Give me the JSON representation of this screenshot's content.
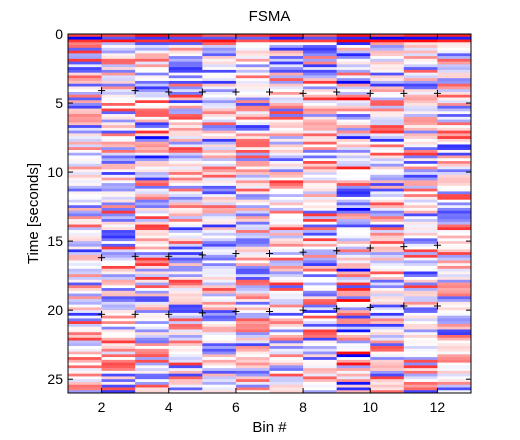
{
  "chart_data": {
    "type": "heatmap",
    "title": "FSMA",
    "xlabel": "Bin #",
    "ylabel": "Time [seconds]",
    "xlim": [
      1,
      13
    ],
    "ylim": [
      0,
      26
    ],
    "y_reversed": true,
    "grid": false,
    "legend": "none",
    "x_ticks": [
      2,
      4,
      6,
      8,
      10,
      12
    ],
    "y_ticks": [
      0,
      5,
      10,
      15,
      20,
      25
    ],
    "bins": [
      1,
      2,
      3,
      4,
      5,
      6,
      7,
      8,
      9,
      10,
      11,
      12
    ],
    "time_step_seconds": 0.2,
    "colors": {
      "positive": "#ff0000",
      "negative": "#0000ff",
      "neutral": "#ffffff"
    },
    "marker_series": [
      {
        "symbol": "+",
        "points": [
          [
            2,
            4.1
          ],
          [
            3,
            4.1
          ],
          [
            4,
            4.2
          ],
          [
            5,
            4.2
          ],
          [
            6,
            4.2
          ],
          [
            7,
            4.2
          ],
          [
            8,
            4.3
          ],
          [
            9,
            4.2
          ],
          [
            10,
            4.3
          ],
          [
            11,
            4.3
          ],
          [
            12,
            4.3
          ]
        ]
      },
      {
        "symbol": "+",
        "points": [
          [
            2,
            16.2
          ],
          [
            3,
            16.1
          ],
          [
            4,
            16.1
          ],
          [
            5,
            16.0
          ],
          [
            6,
            15.9
          ],
          [
            7,
            15.9
          ],
          [
            8,
            15.8
          ],
          [
            9,
            15.7
          ],
          [
            10,
            15.5
          ],
          [
            11,
            15.4
          ],
          [
            12,
            15.3
          ]
        ]
      },
      {
        "symbol": "+",
        "points": [
          [
            2,
            20.3
          ],
          [
            3,
            20.3
          ],
          [
            4,
            20.3
          ],
          [
            5,
            20.2
          ],
          [
            6,
            20.1
          ],
          [
            7,
            20.1
          ],
          [
            8,
            20.0
          ],
          [
            9,
            19.9
          ],
          [
            10,
            19.8
          ],
          [
            11,
            19.7
          ],
          [
            12,
            19.7
          ]
        ]
      }
    ]
  }
}
